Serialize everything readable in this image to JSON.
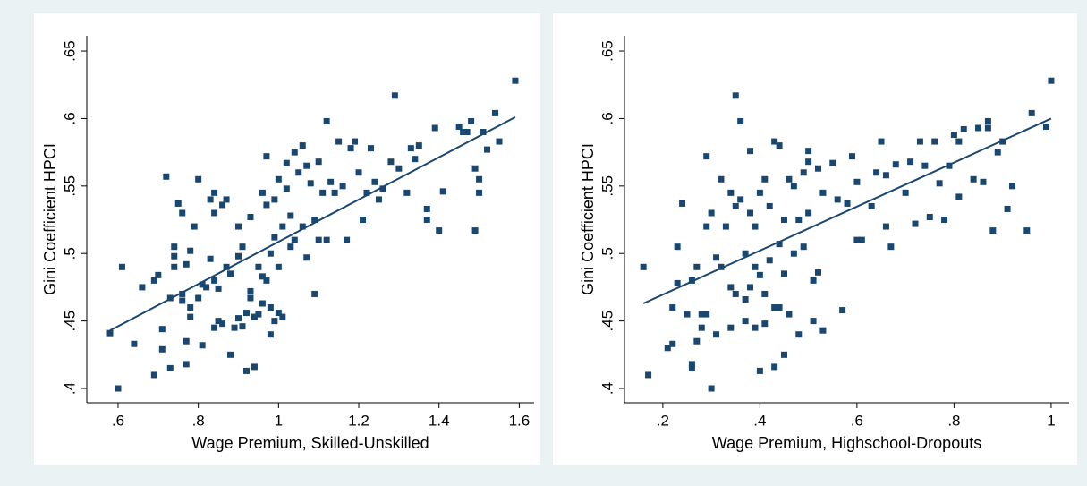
{
  "chart_data": [
    {
      "type": "scatter",
      "color": "#1a476f",
      "xlabel": "Wage Premium, Skilled-Unskilled",
      "ylabel": "Gini Coefficient HPCI",
      "xlim": [
        0.522,
        1.637
      ],
      "ylim": [
        0.3894,
        0.6613
      ],
      "xticks": [
        {
          "value": 0.6,
          "label": ".6"
        },
        {
          "value": 0.8,
          "label": ".8"
        },
        1,
        1.2,
        1.4,
        1.6
      ],
      "yticks": [
        {
          "value": 0.4,
          "label": ".4"
        },
        {
          "value": 0.45,
          "label": ".45"
        },
        {
          "value": 0.5,
          "label": ".5"
        },
        {
          "value": 0.55,
          "label": ".55"
        },
        {
          "value": 0.6,
          "label": ".6"
        },
        {
          "value": 0.65,
          "label": ".65"
        }
      ],
      "x": [
        0.58,
        0.6,
        0.61,
        0.64,
        0.66,
        0.69,
        0.69,
        0.7,
        0.71,
        0.71,
        0.72,
        0.73,
        0.73,
        0.74,
        0.74,
        0.74,
        0.75,
        0.76,
        0.76,
        0.76,
        0.77,
        0.77,
        0.77,
        0.78,
        0.78,
        0.78,
        0.79,
        0.8,
        0.8,
        0.81,
        0.81,
        0.82,
        0.83,
        0.83,
        0.84,
        0.84,
        0.84,
        0.84,
        0.85,
        0.85,
        0.86,
        0.86,
        0.87,
        0.87,
        0.88,
        0.88,
        0.89,
        0.9,
        0.9,
        0.9,
        0.91,
        0.91,
        0.92,
        0.92,
        0.93,
        0.93,
        0.93,
        0.94,
        0.94,
        0.95,
        0.95,
        0.96,
        0.96,
        0.96,
        0.97,
        0.97,
        0.97,
        0.98,
        0.98,
        0.98,
        0.99,
        0.99,
        0.99,
        1.0,
        1.0,
        1.0,
        1.01,
        1.01,
        1.02,
        1.02,
        1.03,
        1.03,
        1.04,
        1.04,
        1.05,
        1.06,
        1.06,
        1.07,
        1.07,
        1.08,
        1.09,
        1.09,
        1.1,
        1.1,
        1.11,
        1.12,
        1.12,
        1.13,
        1.14,
        1.15,
        1.16,
        1.17,
        1.18,
        1.19,
        1.2,
        1.21,
        1.22,
        1.23,
        1.24,
        1.25,
        1.26,
        1.28,
        1.29,
        1.3,
        1.32,
        1.33,
        1.34,
        1.35,
        1.37,
        1.37,
        1.39,
        1.4,
        1.41,
        1.45,
        1.46,
        1.47,
        1.48,
        1.49,
        1.49,
        1.5,
        1.5,
        1.51,
        1.52,
        1.54,
        1.55,
        1.59
      ],
      "values": [
        0.441,
        0.4,
        0.49,
        0.433,
        0.475,
        0.48,
        0.41,
        0.484,
        0.444,
        0.429,
        0.557,
        0.415,
        0.467,
        0.505,
        0.498,
        0.49,
        0.537,
        0.47,
        0.465,
        0.53,
        0.492,
        0.435,
        0.418,
        0.502,
        0.46,
        0.453,
        0.52,
        0.467,
        0.555,
        0.432,
        0.477,
        0.475,
        0.54,
        0.496,
        0.545,
        0.53,
        0.48,
        0.445,
        0.474,
        0.45,
        0.536,
        0.448,
        0.54,
        0.49,
        0.425,
        0.485,
        0.445,
        0.52,
        0.452,
        0.498,
        0.505,
        0.446,
        0.456,
        0.413,
        0.527,
        0.472,
        0.467,
        0.416,
        0.453,
        0.455,
        0.49,
        0.545,
        0.483,
        0.463,
        0.572,
        0.536,
        0.48,
        0.44,
        0.46,
        0.5,
        0.54,
        0.512,
        0.45,
        0.555,
        0.49,
        0.456,
        0.52,
        0.453,
        0.567,
        0.548,
        0.528,
        0.505,
        0.575,
        0.51,
        0.56,
        0.58,
        0.52,
        0.565,
        0.497,
        0.552,
        0.525,
        0.47,
        0.51,
        0.568,
        0.545,
        0.598,
        0.51,
        0.553,
        0.545,
        0.583,
        0.55,
        0.51,
        0.578,
        0.583,
        0.56,
        0.525,
        0.545,
        0.578,
        0.553,
        0.54,
        0.548,
        0.568,
        0.617,
        0.563,
        0.545,
        0.578,
        0.57,
        0.58,
        0.533,
        0.525,
        0.593,
        0.517,
        0.546,
        0.594,
        0.59,
        0.59,
        0.598,
        0.517,
        0.563,
        0.555,
        0.545,
        0.59,
        0.577,
        0.604,
        0.583,
        0.628
      ],
      "fit": {
        "x": [
          0.58,
          1.59
        ],
        "values": [
          0.443,
          0.601
        ]
      }
    },
    {
      "type": "scatter",
      "color": "#1a476f",
      "xlabel": "Wage Premium, Highschool-Dropouts",
      "ylabel": "Gini Coefficient HPCI",
      "xlim": [
        0.121,
        1.037
      ],
      "ylim": [
        0.3894,
        0.6613
      ],
      "xticks": [
        {
          "value": 0.2,
          "label": ".2"
        },
        {
          "value": 0.4,
          "label": ".4"
        },
        {
          "value": 0.6,
          "label": ".6"
        },
        {
          "value": 0.8,
          "label": ".8"
        },
        1
      ],
      "yticks": [
        {
          "value": 0.4,
          "label": ".4"
        },
        {
          "value": 0.45,
          "label": ".45"
        },
        {
          "value": 0.5,
          "label": ".5"
        },
        {
          "value": 0.55,
          "label": ".55"
        },
        {
          "value": 0.6,
          "label": ".6"
        },
        {
          "value": 0.65,
          "label": ".65"
        }
      ],
      "x": [
        0.16,
        0.17,
        0.21,
        0.22,
        0.22,
        0.23,
        0.23,
        0.24,
        0.25,
        0.26,
        0.26,
        0.26,
        0.27,
        0.27,
        0.28,
        0.28,
        0.29,
        0.29,
        0.29,
        0.3,
        0.3,
        0.31,
        0.31,
        0.32,
        0.32,
        0.33,
        0.34,
        0.34,
        0.34,
        0.35,
        0.35,
        0.35,
        0.36,
        0.36,
        0.37,
        0.37,
        0.37,
        0.38,
        0.38,
        0.38,
        0.39,
        0.39,
        0.39,
        0.4,
        0.4,
        0.4,
        0.41,
        0.41,
        0.41,
        0.42,
        0.42,
        0.43,
        0.43,
        0.43,
        0.44,
        0.44,
        0.44,
        0.45,
        0.45,
        0.45,
        0.46,
        0.46,
        0.47,
        0.47,
        0.48,
        0.48,
        0.49,
        0.49,
        0.5,
        0.5,
        0.5,
        0.51,
        0.51,
        0.52,
        0.52,
        0.53,
        0.53,
        0.55,
        0.56,
        0.57,
        0.58,
        0.59,
        0.6,
        0.6,
        0.61,
        0.63,
        0.64,
        0.65,
        0.66,
        0.66,
        0.67,
        0.68,
        0.7,
        0.71,
        0.72,
        0.73,
        0.74,
        0.75,
        0.76,
        0.77,
        0.78,
        0.79,
        0.8,
        0.81,
        0.81,
        0.82,
        0.84,
        0.85,
        0.86,
        0.87,
        0.87,
        0.88,
        0.89,
        0.9,
        0.91,
        0.92,
        0.95,
        0.96,
        0.99,
        1.0
      ],
      "values": [
        0.49,
        0.41,
        0.43,
        0.433,
        0.46,
        0.505,
        0.478,
        0.537,
        0.455,
        0.418,
        0.415,
        0.48,
        0.49,
        0.435,
        0.455,
        0.445,
        0.52,
        0.572,
        0.455,
        0.53,
        0.4,
        0.44,
        0.497,
        0.555,
        0.49,
        0.52,
        0.545,
        0.475,
        0.445,
        0.617,
        0.535,
        0.47,
        0.598,
        0.54,
        0.5,
        0.466,
        0.45,
        0.576,
        0.53,
        0.475,
        0.52,
        0.49,
        0.445,
        0.545,
        0.484,
        0.413,
        0.555,
        0.47,
        0.448,
        0.535,
        0.495,
        0.583,
        0.46,
        0.416,
        0.58,
        0.507,
        0.46,
        0.525,
        0.485,
        0.425,
        0.555,
        0.455,
        0.55,
        0.5,
        0.525,
        0.44,
        0.56,
        0.505,
        0.568,
        0.576,
        0.53,
        0.45,
        0.48,
        0.563,
        0.486,
        0.545,
        0.443,
        0.567,
        0.54,
        0.458,
        0.537,
        0.572,
        0.553,
        0.51,
        0.51,
        0.535,
        0.56,
        0.583,
        0.558,
        0.52,
        0.505,
        0.566,
        0.545,
        0.568,
        0.522,
        0.583,
        0.565,
        0.527,
        0.583,
        0.552,
        0.525,
        0.565,
        0.588,
        0.583,
        0.542,
        0.592,
        0.555,
        0.593,
        0.553,
        0.598,
        0.593,
        0.517,
        0.575,
        0.583,
        0.533,
        0.55,
        0.517,
        0.604,
        0.594,
        0.628
      ],
      "fit": {
        "x": [
          0.16,
          1.0
        ],
        "values": [
          0.463,
          0.6
        ]
      }
    }
  ]
}
